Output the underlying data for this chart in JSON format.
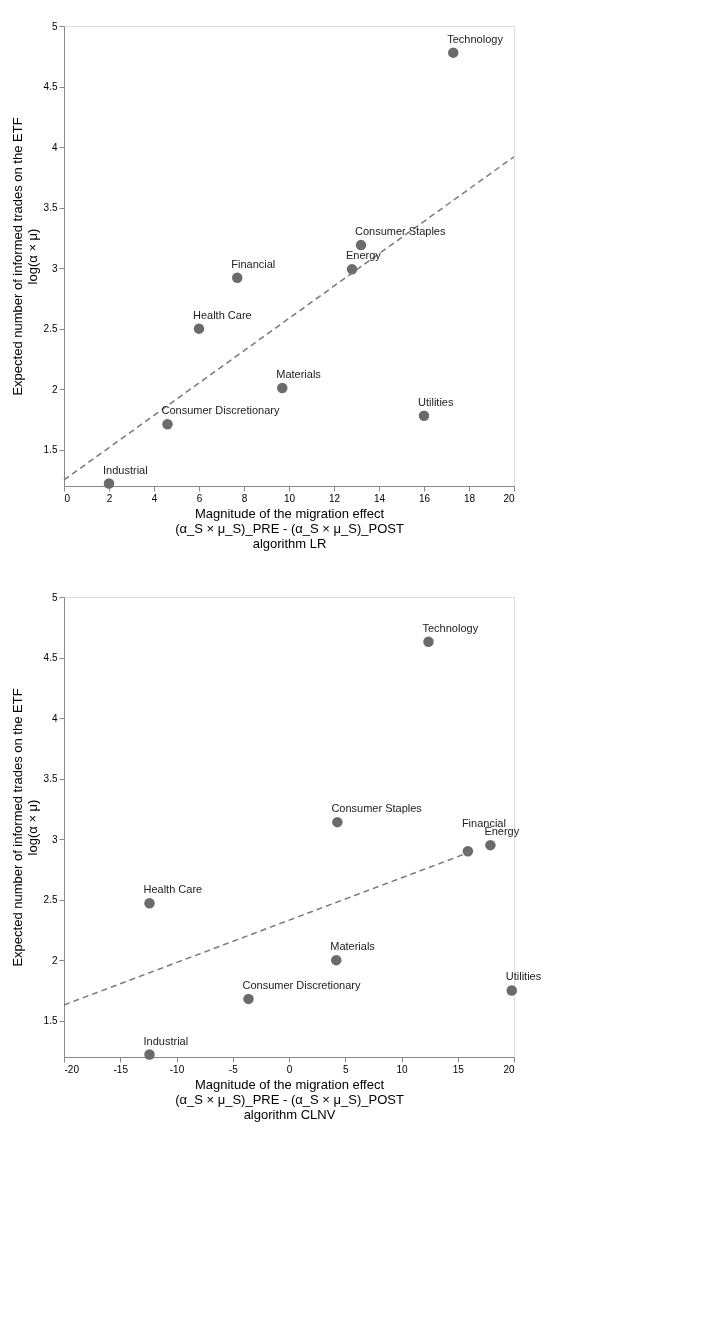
{
  "chart_data": [
    {
      "type": "scatter",
      "xlabel": "Magnitude of the migration effect\n(α_S × μ_S)_PRE - (α_S × μ_S)_POST\nalgorithm LR",
      "ylabel": "Expected number of informed trades on the ETF\nlog(α × μ)",
      "xlim": [
        0,
        20
      ],
      "xticks": [
        0,
        2,
        4,
        6,
        8,
        10,
        12,
        14,
        16,
        18,
        20
      ],
      "ylim": [
        1.2,
        5
      ],
      "yticks": [
        1.5,
        2,
        2.5,
        3,
        3.5,
        4,
        4.5,
        5
      ],
      "grid": false,
      "series": [
        {
          "marker": "circle",
          "color": "#6b6b6b",
          "x": [
            17.3,
            13.2,
            12.8,
            7.7,
            6.0,
            9.7,
            16.0,
            4.6,
            2.0
          ],
          "values": [
            4.78,
            3.19,
            2.99,
            2.92,
            2.5,
            2.01,
            1.78,
            1.71,
            1.22
          ]
        },
        {
          "type": "line",
          "color": "#7a7a7a",
          "line_style": "dashed",
          "x": [
            0,
            20
          ],
          "values": [
            1.25,
            3.92
          ]
        }
      ],
      "annotations": [
        {
          "text": "Technology",
          "x": 17.3,
          "y": 4.78
        },
        {
          "text": "Consumer Staples",
          "x": 13.2,
          "y": 3.19
        },
        {
          "text": "Energy",
          "x": 12.8,
          "y": 2.99
        },
        {
          "text": "Financial",
          "x": 7.7,
          "y": 2.92
        },
        {
          "text": "Health Care",
          "x": 6.0,
          "y": 2.5
        },
        {
          "text": "Materials",
          "x": 9.7,
          "y": 2.01
        },
        {
          "text": "Utilities",
          "x": 16.0,
          "y": 1.78
        },
        {
          "text": "Consumer Discretionary",
          "x": 4.6,
          "y": 1.71
        },
        {
          "text": "Industrial",
          "x": 2.0,
          "y": 1.22
        }
      ]
    },
    {
      "type": "scatter",
      "xlabel": "Magnitude of the migration effect\n(α_S × μ_S)_PRE - (α_S × μ_S)_POST\nalgorithm CLNV",
      "ylabel": "Expected number of informed trades on the ETF\nlog(α × μ)",
      "xlim": [
        -20,
        20
      ],
      "xticks": [
        -20,
        -15,
        -10,
        -5,
        0,
        5,
        10,
        15,
        20
      ],
      "ylim": [
        1.2,
        5
      ],
      "yticks": [
        1.5,
        2,
        2.5,
        3,
        3.5,
        4,
        4.5,
        5
      ],
      "grid": false,
      "series": [
        {
          "marker": "circle",
          "color": "#6b6b6b",
          "x": [
            12.4,
            4.3,
            17.9,
            15.9,
            19.8,
            4.2,
            -3.6,
            -12.4,
            -12.4
          ],
          "values": [
            4.63,
            3.14,
            2.95,
            2.9,
            1.75,
            2.0,
            1.68,
            2.47,
            1.22
          ]
        },
        {
          "type": "line",
          "color": "#7a7a7a",
          "line_style": "dashed",
          "x": [
            -20,
            16
          ],
          "values": [
            1.63,
            2.89
          ]
        }
      ],
      "annotations": [
        {
          "text": "Technology",
          "x": 12.4,
          "y": 4.63
        },
        {
          "text": "Consumer Staples",
          "x": 4.3,
          "y": 3.14
        },
        {
          "text": "Energy",
          "x": 17.9,
          "y": 2.95
        },
        {
          "text": "Financial",
          "x": 15.9,
          "y": 2.9
        },
        {
          "text": "Utilities",
          "x": 19.8,
          "y": 1.75
        },
        {
          "text": "Materials",
          "x": 4.2,
          "y": 2.0
        },
        {
          "text": "Consumer Discretionary",
          "x": -3.6,
          "y": 1.68
        },
        {
          "text": "Health Care",
          "x": -12.4,
          "y": 2.47
        },
        {
          "text": "Industrial",
          "x": -12.4,
          "y": 1.22
        }
      ]
    }
  ]
}
